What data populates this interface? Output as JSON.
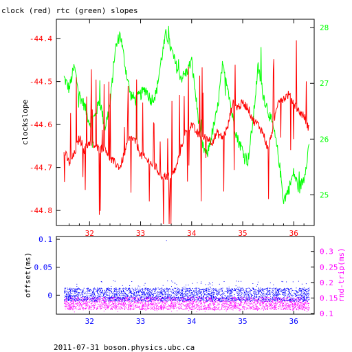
{
  "title": "clock (red) rtc (green) slopes",
  "footer": "2011-07-31 boson.physics.ubc.ca",
  "colors": {
    "frame": "#000000",
    "red": "#ff0000",
    "green": "#00ff00",
    "blue": "#0000ff",
    "magenta": "#ff00ff"
  },
  "chart_data": [
    {
      "type": "line",
      "title": "clock (red) rtc (green) slopes",
      "ylabel": "clockslope",
      "xlim": [
        31.35,
        36.4
      ],
      "ylim": [
        -44.835,
        -44.355
      ],
      "y2lim": [
        24.45,
        28.15
      ],
      "xticks": [
        "32",
        "33",
        "34",
        "35",
        "36"
      ],
      "yticks": [
        "-44.4",
        "-44.5",
        "-44.6",
        "-44.7",
        "-44.8"
      ],
      "y2ticks": [
        "28",
        "27",
        "26",
        "25"
      ],
      "grid": false,
      "series": [
        {
          "name": "clock",
          "color": "#ff0000",
          "axis": "left",
          "x": [
            31.5,
            31.6,
            31.7,
            31.8,
            31.9,
            32.0,
            32.1,
            32.2,
            32.3,
            32.4,
            32.5,
            32.6,
            32.7,
            32.8,
            32.9,
            33.0,
            33.1,
            33.2,
            33.3,
            33.4,
            33.5,
            33.6,
            33.7,
            33.8,
            33.9,
            34.0,
            34.1,
            34.2,
            34.3,
            34.4,
            34.5,
            34.6,
            34.7,
            34.8,
            34.9,
            35.0,
            35.1,
            35.2,
            35.3,
            35.4,
            35.5,
            35.6,
            35.7,
            35.8,
            35.9,
            36.0,
            36.1,
            36.2,
            36.3
          ],
          "y": [
            -44.66,
            -44.69,
            -44.67,
            -44.63,
            -44.66,
            -44.64,
            -44.65,
            -44.66,
            -44.65,
            -44.68,
            -44.69,
            -44.7,
            -44.66,
            -44.63,
            -44.64,
            -44.67,
            -44.68,
            -44.69,
            -44.7,
            -44.72,
            -44.72,
            -44.72,
            -44.7,
            -44.65,
            -44.61,
            -44.6,
            -44.62,
            -44.63,
            -44.63,
            -44.64,
            -44.62,
            -44.63,
            -44.61,
            -44.55,
            -44.56,
            -44.55,
            -44.56,
            -44.59,
            -44.6,
            -44.62,
            -44.66,
            -44.6,
            -44.54,
            -44.54,
            -44.53,
            -44.55,
            -44.57,
            -44.58,
            -44.61
          ]
        },
        {
          "name": "rtc",
          "color": "#00ff00",
          "axis": "right",
          "x": [
            31.5,
            31.6,
            31.7,
            31.8,
            31.9,
            32.0,
            32.1,
            32.2,
            32.3,
            32.4,
            32.5,
            32.6,
            32.7,
            32.8,
            32.9,
            33.0,
            33.1,
            33.2,
            33.3,
            33.4,
            33.5,
            33.6,
            33.7,
            33.8,
            33.9,
            34.0,
            34.1,
            34.2,
            34.3,
            34.4,
            34.5,
            34.6,
            34.7,
            34.8,
            34.9,
            35.0,
            35.1,
            35.2,
            35.3,
            35.4,
            35.5,
            35.6,
            35.7,
            35.8,
            35.9,
            36.0,
            36.1,
            36.2,
            36.3
          ],
          "y": [
            27.1,
            26.9,
            27.3,
            26.8,
            26.6,
            26.3,
            26.4,
            26.7,
            26.2,
            26.6,
            27.6,
            27.9,
            27.3,
            26.8,
            26.7,
            26.8,
            26.9,
            26.7,
            26.8,
            27.4,
            27.9,
            27.6,
            27.3,
            27.1,
            27.2,
            27.4,
            26.6,
            25.9,
            25.7,
            26.1,
            26.5,
            27.3,
            27.0,
            26.4,
            26.0,
            25.8,
            25.6,
            26.3,
            27.3,
            26.8,
            26.5,
            26.2,
            25.7,
            24.9,
            25.1,
            25.4,
            25.1,
            25.3,
            25.9
          ]
        }
      ]
    },
    {
      "type": "scatter",
      "ylabel": "offset(ms)",
      "y2label": "rnd-trip(ms)",
      "xlim": [
        31.35,
        36.4
      ],
      "ylim": [
        -0.034,
        0.105
      ],
      "y2lim": [
        0.098,
        0.348
      ],
      "xticks": [
        "32",
        "33",
        "34",
        "35",
        "36"
      ],
      "yticks": [
        "0.1",
        "0.05",
        "0"
      ],
      "y2ticks": [
        "0.3",
        "0.25",
        "0.2",
        "0.15",
        "0.1"
      ],
      "grid": false,
      "series": [
        {
          "name": "offset",
          "color": "#0000ff",
          "axis": "left",
          "x_range": [
            31.5,
            36.3
          ],
          "y_range": [
            -0.015,
            0.015
          ]
        },
        {
          "name": "rnd-trip",
          "color": "#ff00ff",
          "axis": "right",
          "x_range": [
            31.5,
            36.3
          ],
          "y_range": [
            0.11,
            0.16
          ]
        }
      ]
    }
  ]
}
